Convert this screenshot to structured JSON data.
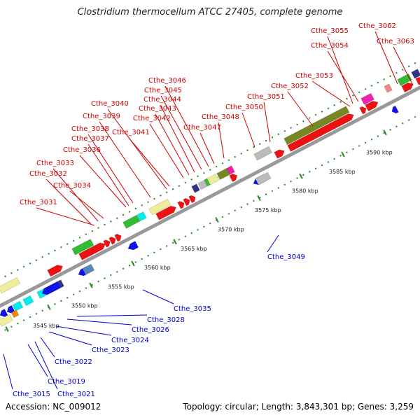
{
  "title": "Clostridium thermocellum ATCC 27405, complete genome",
  "accession": "Accession: NC_009012",
  "topology": "Topology: circular; Length: 3,843,301 bp; Genes: 3,259",
  "colors": {
    "backbone": "#999999",
    "forward_label": "#cc0000",
    "reverse_label": "#0000cc",
    "tick": "#228822",
    "red": "#ee1111",
    "blue": "#1111ee",
    "green": "#33bb33",
    "olive": "#778822",
    "khaki": "#eeee99",
    "grey": "#bbbbbb",
    "magenta": "#ee22aa",
    "pink": "#ee8888",
    "cyan": "#00eeee",
    "navy": "#333388",
    "steel": "#5588bb",
    "orange": "#ee8800"
  },
  "scale_labels": [
    "3545 kbp",
    "3550 kbp",
    "3555 kbp",
    "3560 kbp",
    "3565 kbp",
    "3570 kbp",
    "3575 kbp",
    "3580 kbp",
    "3585 kbp",
    "3590 kbp"
  ],
  "forward_genes": [
    "Cthe_3031",
    "Cthe_3032",
    "Cthe_3033",
    "Cthe_3034",
    "Cthe_3036",
    "Cthe_3037",
    "Cthe_3038",
    "Cthe_3039",
    "Cthe_3040",
    "Cthe_3041",
    "Cthe_3042",
    "Cthe_3043",
    "Cthe_3044",
    "Cthe_3045",
    "Cthe_3046",
    "Cthe_3047",
    "Cthe_3048",
    "Cthe_3050",
    "Cthe_3051",
    "Cthe_3052",
    "Cthe_3053",
    "Cthe_3054",
    "Cthe_3055",
    "Cthe_3062",
    "Cthe_3063"
  ],
  "reverse_genes": [
    "Cthe_3015",
    "Cthe_3019",
    "Cthe_3021",
    "Cthe_3022",
    "Cthe_3023",
    "Cthe_3024",
    "Cthe_3026",
    "Cthe_3028",
    "Cthe_3035",
    "Cthe_3049"
  ]
}
